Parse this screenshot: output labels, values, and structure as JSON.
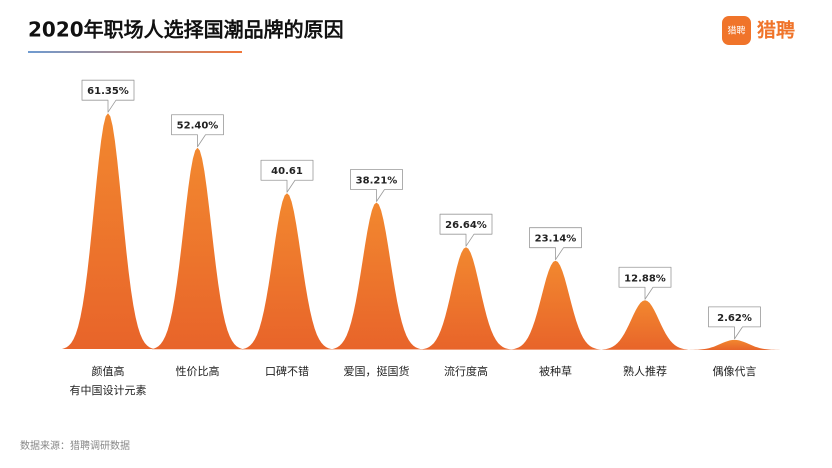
{
  "chart_data": {
    "type": "bar",
    "title": "2020年职场人选择国潮品牌的原因",
    "categories": [
      "颜值高\n有中国设计元素",
      "性价比高",
      "口碑不错",
      "爱国，挺国货",
      "流行度高",
      "被种草",
      "熟人推荐",
      "偶像代言"
    ],
    "values": [
      61.35,
      52.4,
      40.61,
      38.21,
      26.64,
      23.14,
      12.88,
      2.62
    ],
    "value_labels": [
      "61.35%",
      "52.40%",
      "40.61",
      "38.21%",
      "26.64%",
      "23.14%",
      "12.88%",
      "2.62%"
    ],
    "color": "#ee7a2e",
    "source": "数据来源：猎聘调研数据",
    "logo": "猎聘",
    "logo_icon": "猎聘"
  }
}
